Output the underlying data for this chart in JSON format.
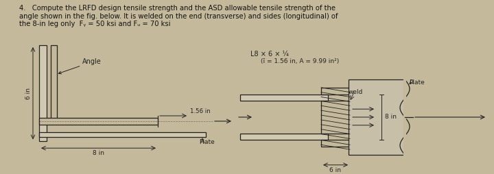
{
  "bg_color": "#c4b99a",
  "text_color": "#111111",
  "line_color": "#222222",
  "title1": "4.   Compute the LRFD design tensile strength and the ASD allowable tensile strength of the",
  "title2": "angle shown in the fig. below. It is welded on the end (transverse) and sides (longitudinal) of",
  "title3": "the 8-in leg only  Fᵧ = 50 ksi and Fᵤ = 70 ksi",
  "angle_label": "Angle",
  "plate_label_top": "Plate",
  "plate_label_bot": "Plate",
  "section_label": "L8 × 6 × ¼",
  "props_label": "(ī = 1.56 in, A = 9.99 in²)",
  "weld_label": "weld",
  "dim_6in_left": "6 in",
  "dim_8in_bot": "8 in",
  "dim_8in_right": "8 in",
  "dim_6in_bot": "6 in",
  "dim_156": "1.56 in"
}
